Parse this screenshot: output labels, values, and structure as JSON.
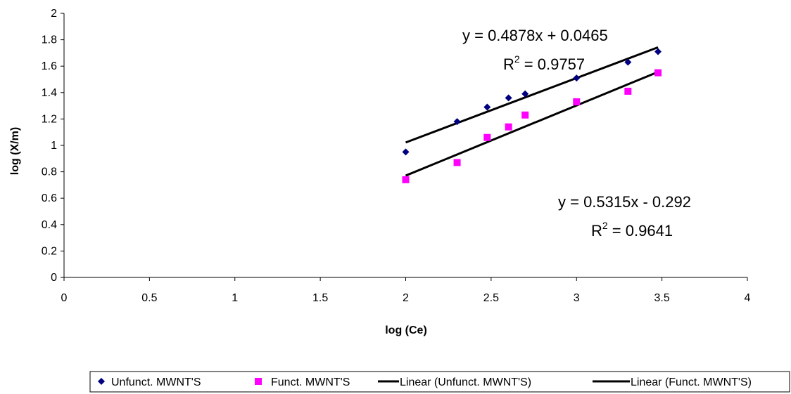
{
  "chart_data": {
    "type": "scatter",
    "xlabel": "log (Ce)",
    "ylabel": "log (X/m)",
    "xlim": [
      0,
      4
    ],
    "ylim": [
      0,
      2
    ],
    "x_ticks": [
      "0",
      "0.5",
      "1",
      "1.5",
      "2",
      "2.5",
      "3",
      "3.5",
      "4"
    ],
    "y_ticks": [
      "0",
      "0.2",
      "0.4",
      "0.6",
      "0.8",
      "1",
      "1.2",
      "1.4",
      "1.6",
      "1.8",
      "2"
    ],
    "grid": false,
    "legend_position": "bottom",
    "series": [
      {
        "name": "Unfunct. MWNT'S",
        "marker": "diamond",
        "color": "#000080",
        "x": [
          2.0,
          2.301,
          2.477,
          2.602,
          2.699,
          3.0,
          3.301,
          3.477
        ],
        "y": [
          0.95,
          1.18,
          1.29,
          1.36,
          1.39,
          1.51,
          1.63,
          1.71
        ]
      },
      {
        "name": "Funct. MWNT'S",
        "marker": "square",
        "color": "#ff00ff",
        "x": [
          2.0,
          2.301,
          2.477,
          2.602,
          2.699,
          3.0,
          3.301,
          3.477
        ],
        "y": [
          0.74,
          0.87,
          1.06,
          1.14,
          1.23,
          1.33,
          1.41,
          1.55
        ]
      }
    ],
    "trendlines": [
      {
        "name": "Linear (Unfunct. MWNT'S)",
        "slope": 0.4878,
        "intercept": 0.0465,
        "x_range": [
          2.0,
          3.477
        ],
        "color": "#000000",
        "equation": "y = 0.4878x + 0.0465",
        "r2_prefix": "R",
        "r2_value": " = 0.9757"
      },
      {
        "name": "Linear (Funct. MWNT'S)",
        "slope": 0.5315,
        "intercept": -0.292,
        "x_range": [
          2.0,
          3.477
        ],
        "color": "#000000",
        "equation": "y = 0.5315x - 0.292",
        "r2_prefix": "R",
        "r2_value": " = 0.9641"
      }
    ],
    "r2_exponent": "2"
  }
}
